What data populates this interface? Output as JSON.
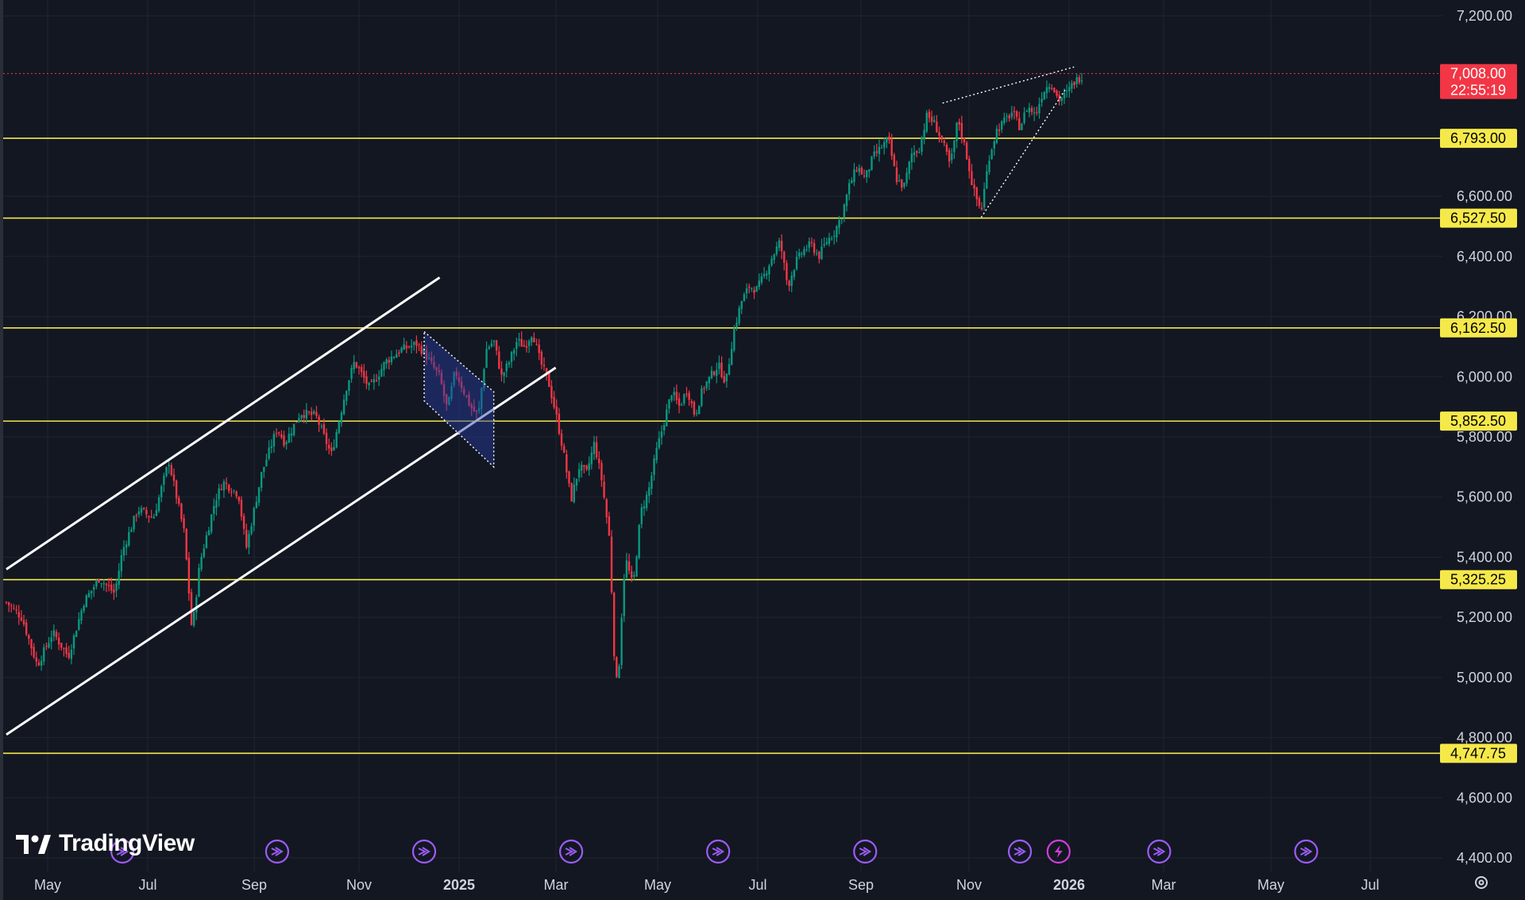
{
  "chart_data": {
    "type": "candlestick",
    "instrument_price": {
      "value": 7008.0,
      "label": "7,008.00",
      "countdown": "22:55:19",
      "color": "#f23645"
    },
    "y_axis": {
      "range": [
        4400,
        7200
      ],
      "ticks": [
        {
          "value": 7200,
          "label": "7,200.00"
        },
        {
          "value": 6600,
          "label": "6,600.00"
        },
        {
          "value": 6400,
          "label": "6,400.00"
        },
        {
          "value": 6200,
          "label": "6,200.00"
        },
        {
          "value": 6000,
          "label": "6,000.00"
        },
        {
          "value": 5800,
          "label": "5,800.00"
        },
        {
          "value": 5600,
          "label": "5,600.00"
        },
        {
          "value": 5400,
          "label": "5,400.00"
        },
        {
          "value": 5200,
          "label": "5,200.00"
        },
        {
          "value": 5000,
          "label": "5,000.00"
        },
        {
          "value": 4800,
          "label": "4,800.00"
        },
        {
          "value": 4600,
          "label": "4,600.00"
        },
        {
          "value": 4400,
          "label": "4,400.00"
        }
      ]
    },
    "x_axis": {
      "ticks": [
        {
          "label": "May",
          "bold": false
        },
        {
          "label": "Jul",
          "bold": false
        },
        {
          "label": "Sep",
          "bold": false
        },
        {
          "label": "Nov",
          "bold": false
        },
        {
          "label": "2025",
          "bold": true
        },
        {
          "label": "Mar",
          "bold": false
        },
        {
          "label": "May",
          "bold": false
        },
        {
          "label": "Jul",
          "bold": false
        },
        {
          "label": "Sep",
          "bold": false
        },
        {
          "label": "Nov",
          "bold": false
        },
        {
          "label": "2026",
          "bold": true
        },
        {
          "label": "Mar",
          "bold": false
        },
        {
          "label": "May",
          "bold": false
        },
        {
          "label": "Jul",
          "bold": false
        }
      ]
    },
    "horizontal_levels": [
      {
        "value": 6793.0,
        "label": "6,793.00"
      },
      {
        "value": 6527.5,
        "label": "6,527.50"
      },
      {
        "value": 6162.5,
        "label": "6,162.50"
      },
      {
        "value": 5852.5,
        "label": "5,852.50"
      },
      {
        "value": 5325.25,
        "label": "5,325.25"
      },
      {
        "value": 4747.75,
        "label": "4,747.75"
      }
    ],
    "level_color": "#f5e94a",
    "up_color": "#089981",
    "down_color": "#f23645",
    "grid": true,
    "price_path": [
      [
        0,
        5250
      ],
      [
        2,
        5200
      ],
      [
        4,
        5040
      ],
      [
        6,
        5150
      ],
      [
        8,
        5070
      ],
      [
        10,
        5250
      ],
      [
        12,
        5330
      ],
      [
        14,
        5280
      ],
      [
        15,
        5420
      ],
      [
        17,
        5560
      ],
      [
        19,
        5530
      ],
      [
        21,
        5720
      ],
      [
        22,
        5600
      ],
      [
        23,
        5480
      ],
      [
        24,
        5150
      ],
      [
        25,
        5380
      ],
      [
        27,
        5590
      ],
      [
        28,
        5650
      ],
      [
        30,
        5610
      ],
      [
        31,
        5430
      ],
      [
        33,
        5680
      ],
      [
        35,
        5830
      ],
      [
        36,
        5780
      ],
      [
        38,
        5880
      ],
      [
        40,
        5870
      ],
      [
        42,
        5740
      ],
      [
        44,
        5970
      ],
      [
        45,
        6050
      ],
      [
        47,
        5960
      ],
      [
        49,
        6050
      ],
      [
        51,
        6090
      ],
      [
        53,
        6110
      ],
      [
        54,
        6080
      ],
      [
        55,
        6040
      ],
      [
        56,
        6000
      ],
      [
        57,
        5890
      ],
      [
        58,
        6020
      ],
      [
        60,
        5900
      ],
      [
        61,
        5870
      ],
      [
        62,
        6090
      ],
      [
        63,
        6120
      ],
      [
        64,
        6000
      ],
      [
        65,
        6050
      ],
      [
        66,
        6120
      ],
      [
        67,
        6100
      ],
      [
        68,
        6150
      ],
      [
        69,
        6050
      ],
      [
        70,
        5990
      ],
      [
        71,
        5880
      ],
      [
        72,
        5750
      ],
      [
        73,
        5590
      ],
      [
        74,
        5700
      ],
      [
        75,
        5680
      ],
      [
        76,
        5780
      ],
      [
        77,
        5650
      ],
      [
        78,
        5450
      ],
      [
        78.5,
        5100
      ],
      [
        79,
        4950
      ],
      [
        79.5,
        5200
      ],
      [
        80,
        5400
      ],
      [
        81,
        5300
      ],
      [
        82,
        5550
      ],
      [
        83,
        5620
      ],
      [
        84,
        5750
      ],
      [
        85,
        5850
      ],
      [
        86,
        5950
      ],
      [
        87,
        5900
      ],
      [
        88,
        5960
      ],
      [
        89,
        5870
      ],
      [
        90,
        5960
      ],
      [
        91,
        6000
      ],
      [
        92,
        6040
      ],
      [
        93,
        5980
      ],
      [
        94,
        6150
      ],
      [
        95,
        6250
      ],
      [
        96,
        6300
      ],
      [
        97,
        6290
      ],
      [
        98,
        6340
      ],
      [
        99,
        6400
      ],
      [
        100,
        6450
      ],
      [
        101,
        6300
      ],
      [
        102,
        6380
      ],
      [
        103,
        6420
      ],
      [
        104,
        6440
      ],
      [
        105,
        6400
      ],
      [
        106,
        6450
      ],
      [
        107,
        6480
      ],
      [
        108,
        6540
      ],
      [
        109,
        6640
      ],
      [
        110,
        6700
      ],
      [
        111,
        6660
      ],
      [
        112,
        6730
      ],
      [
        113,
        6760
      ],
      [
        114,
        6790
      ],
      [
        115,
        6660
      ],
      [
        116,
        6630
      ],
      [
        117,
        6740
      ],
      [
        118,
        6760
      ],
      [
        119,
        6870
      ],
      [
        120,
        6840
      ],
      [
        121,
        6780
      ],
      [
        122,
        6700
      ],
      [
        123,
        6860
      ],
      [
        124,
        6750
      ],
      [
        125,
        6620
      ],
      [
        126,
        6550
      ],
      [
        127,
        6730
      ],
      [
        128,
        6820
      ],
      [
        129,
        6850
      ],
      [
        130,
        6880
      ],
      [
        131,
        6830
      ],
      [
        132,
        6900
      ],
      [
        133,
        6870
      ],
      [
        134,
        6950
      ],
      [
        135,
        6980
      ],
      [
        136,
        6920
      ],
      [
        137,
        6940
      ],
      [
        138,
        6980
      ],
      [
        139,
        7000
      ]
    ],
    "path_x_range": [
      0,
      139
    ],
    "channel_lines": [
      {
        "from": [
          0,
          5360
        ],
        "to": [
          56,
          6330
        ]
      },
      {
        "from": [
          0,
          4810
        ],
        "to": [
          71,
          6030
        ]
      }
    ],
    "flag": {
      "points": [
        [
          54,
          6150
        ],
        [
          63,
          5950
        ],
        [
          63,
          5700
        ],
        [
          54,
          5920
        ]
      ]
    },
    "wedge": {
      "upper": [
        [
          121,
          6910
        ],
        [
          138,
          7030
        ]
      ],
      "lower": [
        [
          126,
          6530
        ],
        [
          137,
          6960
        ]
      ]
    },
    "event_markers": [
      {
        "x": 15,
        "type": "arrow"
      },
      {
        "x": 35,
        "type": "arrow"
      },
      {
        "x": 54,
        "type": "arrow"
      },
      {
        "x": 73,
        "type": "arrow"
      },
      {
        "x": 92,
        "type": "arrow"
      },
      {
        "x": 111,
        "type": "arrow"
      },
      {
        "x": 131,
        "type": "arrow"
      },
      {
        "x": 136,
        "type": "bolt"
      },
      {
        "x": 149,
        "type": "arrow"
      },
      {
        "x": 168,
        "type": "arrow"
      }
    ],
    "event_color": "#9c5cf5",
    "bolt_color": "#cf3dd8"
  },
  "logo": {
    "text": "TradingView"
  }
}
